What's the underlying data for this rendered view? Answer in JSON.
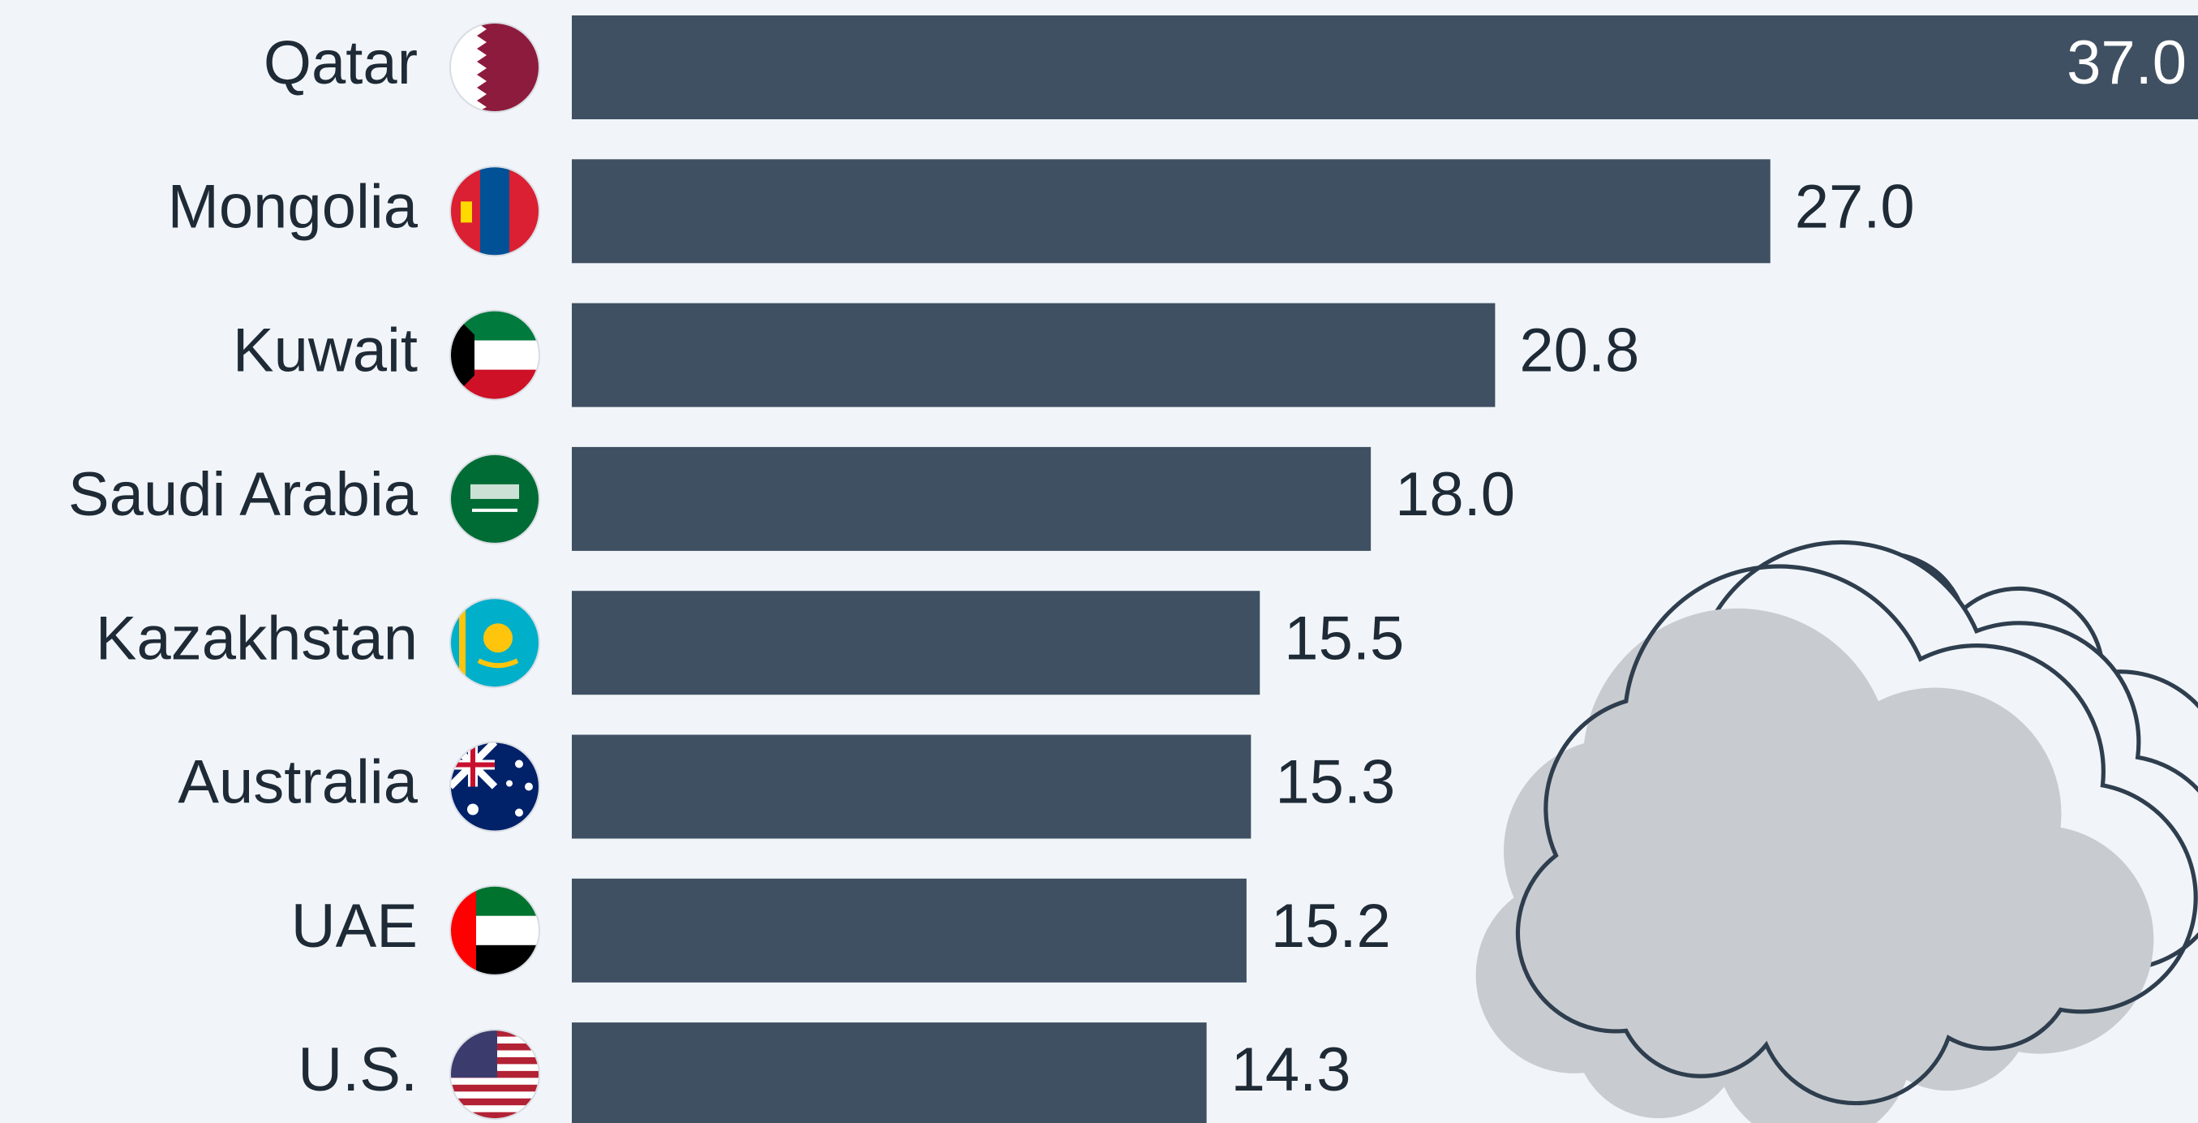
{
  "chart_data": {
    "type": "bar",
    "orientation": "horizontal",
    "categories": [
      "Qatar",
      "Mongolia",
      "Kuwait",
      "Saudi Arabia",
      "Kazakhstan",
      "Australia",
      "UAE",
      "U.S."
    ],
    "values": [
      37,
      27,
      20.8,
      18,
      15.5,
      15.3,
      15.2,
      14.3
    ],
    "value_labels": [
      "37.0",
      "27.0",
      "20.8",
      "18.0",
      "15.5",
      "15.3",
      "15.2",
      "14.3"
    ],
    "color": "#3f5062"
  }
}
